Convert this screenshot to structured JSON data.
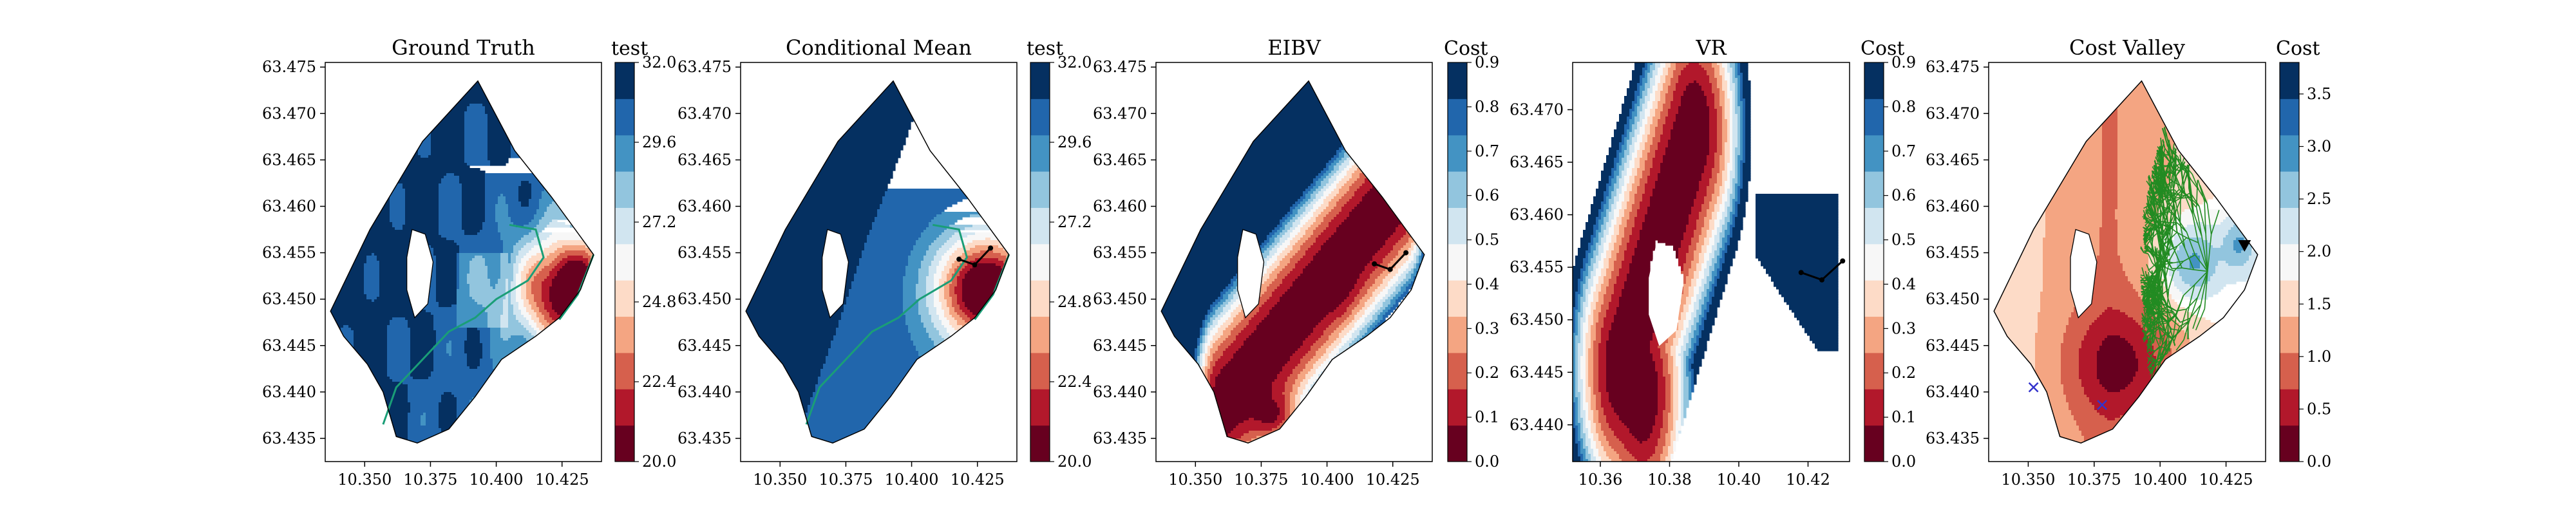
{
  "chart_data": [
    {
      "type": "heatmap",
      "title": "Ground Truth",
      "colorbar_label": "test",
      "xlim": [
        10.335,
        10.44
      ],
      "ylim": [
        63.4325,
        63.4755
      ],
      "x_ticks": [
        "10.350",
        "10.375",
        "10.400",
        "10.425"
      ],
      "y_ticks": [
        "63.475",
        "63.470",
        "63.465",
        "63.460",
        "63.455",
        "63.450",
        "63.445",
        "63.440",
        "63.435"
      ],
      "colorbar_ticks": [
        "20.0",
        "22.4",
        "24.8",
        "27.2",
        "29.6",
        "32.0"
      ],
      "colorbar_range": [
        20.0,
        32.0
      ],
      "field": "salinity",
      "contour_color": "#1a9e77"
    },
    {
      "type": "heatmap",
      "title": "Conditional Mean",
      "colorbar_label": "test",
      "xlim": [
        10.335,
        10.44
      ],
      "ylim": [
        63.4325,
        63.4755
      ],
      "x_ticks": [
        "10.350",
        "10.375",
        "10.400",
        "10.425"
      ],
      "y_ticks": [
        "63.475",
        "63.470",
        "63.465",
        "63.460",
        "63.455",
        "63.450",
        "63.445",
        "63.440",
        "63.435"
      ],
      "colorbar_ticks": [
        "20.0",
        "22.4",
        "24.8",
        "27.2",
        "29.6",
        "32.0"
      ],
      "colorbar_range": [
        20.0,
        32.0
      ],
      "field": "salinity",
      "contour_color": "#1a9e77",
      "path": [
        [
          10.418,
          63.4543
        ],
        [
          10.424,
          63.4537
        ],
        [
          10.43,
          63.4555
        ]
      ]
    },
    {
      "type": "heatmap",
      "title": "EIBV",
      "colorbar_label": "Cost",
      "xlim": [
        10.335,
        10.44
      ],
      "ylim": [
        63.4325,
        63.4755
      ],
      "x_ticks": [
        "10.350",
        "10.375",
        "10.400",
        "10.425"
      ],
      "y_ticks": [
        "63.475",
        "63.470",
        "63.465",
        "63.460",
        "63.455",
        "63.450",
        "63.445",
        "63.440",
        "63.435"
      ],
      "colorbar_ticks": [
        "0.0",
        "0.1",
        "0.2",
        "0.3",
        "0.4",
        "0.5",
        "0.6",
        "0.7",
        "0.8",
        "0.9"
      ],
      "colorbar_range": [
        0.0,
        0.9
      ],
      "field": "eibv",
      "path": [
        [
          10.418,
          63.4538
        ],
        [
          10.424,
          63.4532
        ],
        [
          10.43,
          63.455
        ]
      ]
    },
    {
      "type": "heatmap",
      "title": "VR",
      "colorbar_label": "Cost",
      "xlim": [
        10.352,
        10.432
      ],
      "ylim": [
        63.4365,
        63.4745
      ],
      "x_ticks": [
        "10.36",
        "10.38",
        "10.40",
        "10.42"
      ],
      "y_ticks": [
        "63.470",
        "63.465",
        "63.460",
        "63.455",
        "63.450",
        "63.445",
        "63.440"
      ],
      "colorbar_ticks": [
        "0.0",
        "0.1",
        "0.2",
        "0.3",
        "0.4",
        "0.5",
        "0.6",
        "0.7",
        "0.8",
        "0.9"
      ],
      "colorbar_range": [
        0.0,
        0.9
      ],
      "field": "vr",
      "path": [
        [
          10.418,
          63.4545
        ],
        [
          10.424,
          63.4538
        ],
        [
          10.43,
          63.4556
        ]
      ]
    },
    {
      "type": "heatmap",
      "title": "Cost Valley",
      "colorbar_label": "Cost",
      "xlim": [
        10.335,
        10.44
      ],
      "ylim": [
        63.4325,
        63.4755
      ],
      "x_ticks": [
        "10.350",
        "10.375",
        "10.400",
        "10.425"
      ],
      "y_ticks": [
        "63.475",
        "63.470",
        "63.465",
        "63.460",
        "63.455",
        "63.450",
        "63.445",
        "63.440",
        "63.435"
      ],
      "colorbar_ticks": [
        "0.0",
        "0.5",
        "1.0",
        "1.5",
        "2.0",
        "2.5",
        "3.0",
        "3.5"
      ],
      "colorbar_range": [
        0.0,
        3.8
      ],
      "field": "costvalley",
      "tree_color": "#228b22",
      "markers": [
        {
          "shape": "x",
          "color": "#3333cc",
          "x": 10.352,
          "y": 63.4405
        },
        {
          "shape": "x",
          "color": "#3333cc",
          "x": 10.378,
          "y": 63.4386
        },
        {
          "shape": "triangle-down",
          "color": "#000000",
          "x": 10.432,
          "y": 63.4558
        }
      ]
    }
  ],
  "colors": {
    "levels": [
      "#67001f",
      "#b2182b",
      "#d6604d",
      "#f4a582",
      "#fddbc7",
      "#f7f7f7",
      "#d1e5f0",
      "#92c5de",
      "#4393c3",
      "#2166ac",
      "#053061"
    ]
  }
}
